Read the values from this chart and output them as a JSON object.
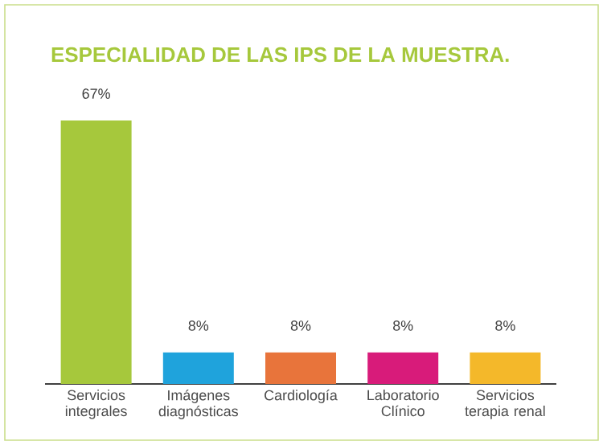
{
  "chart_data": {
    "type": "bar",
    "title": "ESPECIALIDAD DE LAS IPS DE LA MUESTRA.",
    "categories": [
      "Servicios integrales",
      "Imágenes diagnósticas",
      "Cardiología",
      "Laboratorio Clínico",
      "Servicios terapia renal"
    ],
    "values": [
      67,
      8,
      8,
      8,
      8
    ],
    "colors": [
      "#a6c83c",
      "#1fa3dc",
      "#e8743b",
      "#d81b7a",
      "#f4b82a"
    ],
    "value_labels": [
      "67%",
      "8%",
      "8%",
      "8%",
      "8%"
    ]
  }
}
